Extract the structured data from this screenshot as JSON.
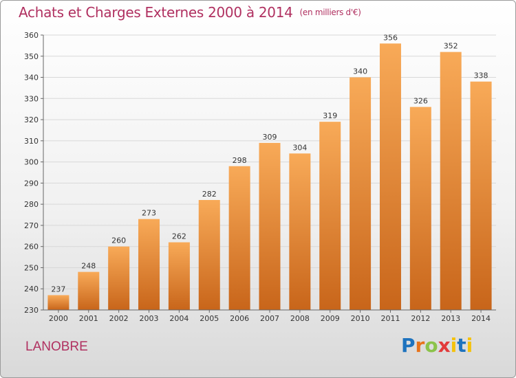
{
  "title": {
    "main": "Achats et Charges Externes 2000 à 2014",
    "unit": "(en milliers d'€)"
  },
  "commune": "LANOBRE",
  "logo": {
    "text": "Proxiti",
    "letters": [
      "P",
      "r",
      "o",
      "x",
      "i",
      "t",
      "i"
    ]
  },
  "colors": {
    "title": "#b03060",
    "bar_light": "#f7a552",
    "bar_dark": "#c8651a",
    "grid": "#d8d8d8"
  },
  "chart_data": {
    "type": "bar",
    "title": "Achats et Charges Externes 2000 à 2014",
    "subtitle": "(en milliers d'€)",
    "categories": [
      "2000",
      "2001",
      "2002",
      "2003",
      "2004",
      "2005",
      "2006",
      "2007",
      "2008",
      "2009",
      "2010",
      "2011",
      "2012",
      "2013",
      "2014"
    ],
    "values": [
      237,
      248,
      260,
      273,
      262,
      282,
      298,
      309,
      304,
      319,
      340,
      356,
      326,
      352,
      338
    ],
    "ylim": [
      230,
      360
    ],
    "yticks": [
      230,
      240,
      250,
      260,
      270,
      280,
      290,
      300,
      310,
      320,
      330,
      340,
      350,
      360
    ],
    "grid": true,
    "xlabel": "",
    "ylabel": ""
  }
}
